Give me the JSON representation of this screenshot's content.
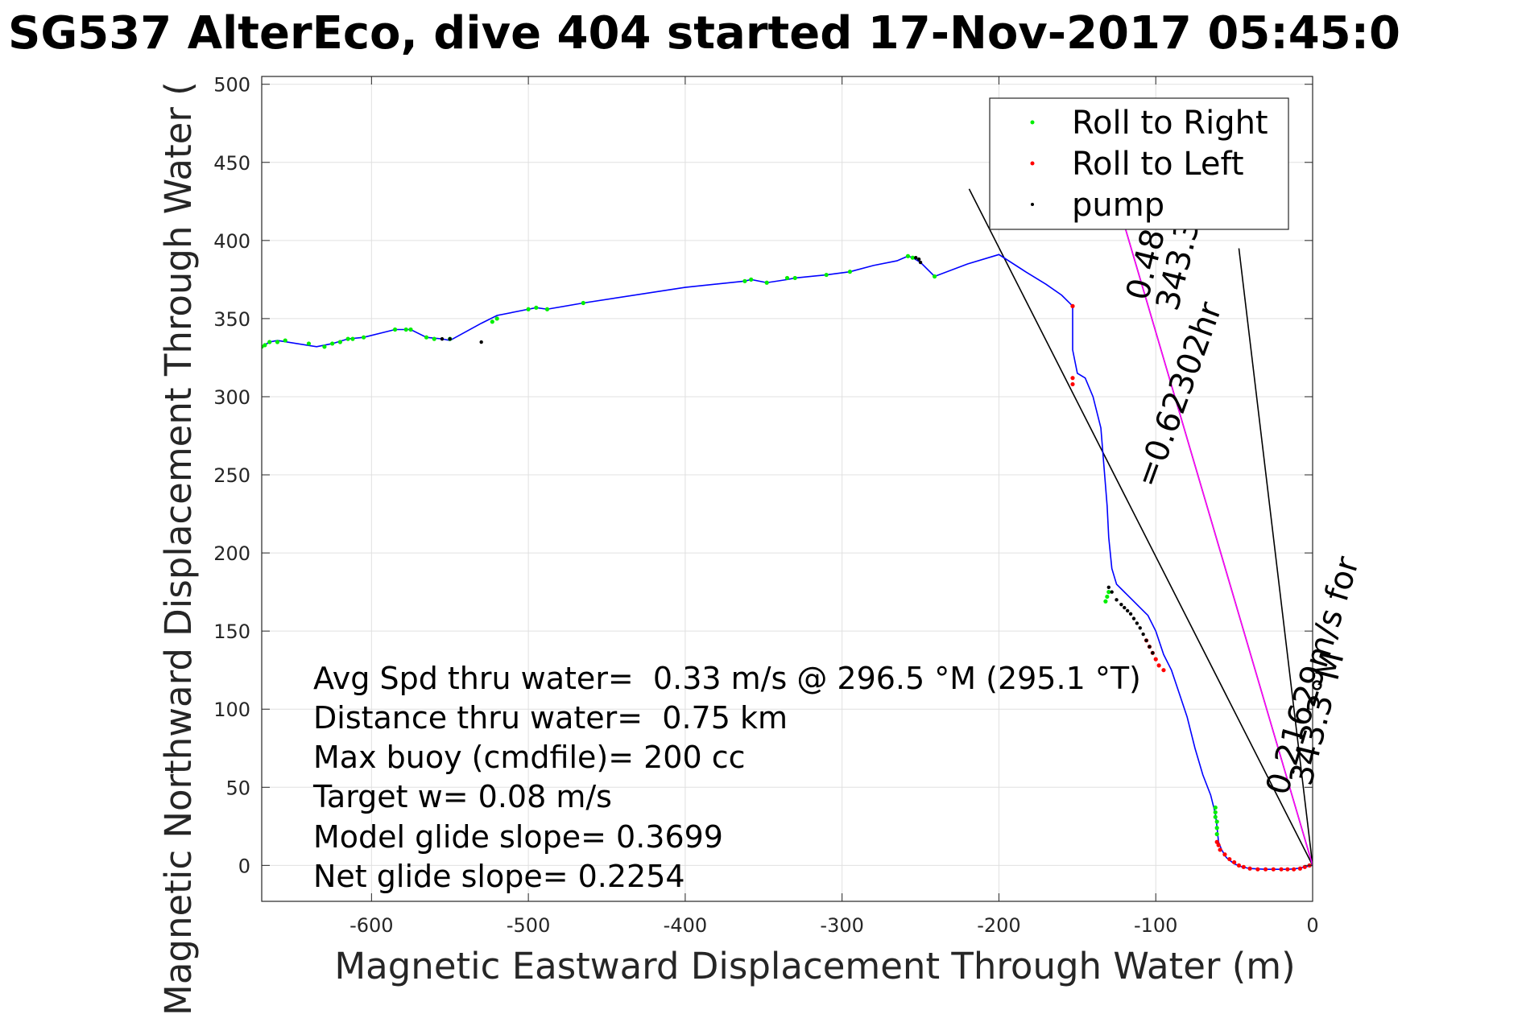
{
  "chart_data": {
    "type": "line",
    "title": "SG537 AlterEco, dive 404 started 17-Nov-2017 05:45:0",
    "xlabel": "Magnetic Eastward Displacement Through Water (m)",
    "ylabel": "Magnetic Northward Displacement Through Water (",
    "xlim": [
      -670,
      0
    ],
    "ylim": [
      -23,
      505
    ],
    "xticks": [
      -600,
      -500,
      -400,
      -300,
      -200,
      -100,
      0
    ],
    "yticks": [
      0,
      50,
      100,
      150,
      200,
      250,
      300,
      350,
      400,
      450,
      500
    ],
    "grid": true,
    "legend_position": "top-right",
    "legend": [
      {
        "name": "Roll to Right",
        "color": "#00ee00"
      },
      {
        "name": "Roll to Left",
        "color": "#ff0000"
      },
      {
        "name": "pump",
        "color": "#000000"
      }
    ],
    "track": {
      "color": "#0000ff",
      "x": [
        0,
        -5,
        -10,
        -15,
        -20,
        -30,
        -40,
        -45,
        -50,
        -55,
        -58,
        -60,
        -61,
        -62,
        -65,
        -70,
        -75,
        -80,
        -85,
        -90,
        -95,
        -100,
        -105,
        -110,
        -115,
        -120,
        -125,
        -128,
        -130,
        -131,
        -133,
        -135,
        -140,
        -145,
        -150,
        -153,
        -153,
        -155,
        -160,
        -170,
        -183,
        -200,
        -220,
        -241,
        -250,
        -255,
        -258,
        -265,
        -280,
        -295,
        -310,
        -330,
        -335,
        -348,
        -358,
        -362,
        -400,
        -465,
        -488,
        -495,
        -500,
        -520,
        -530,
        -550,
        -555,
        -565,
        -575,
        -585,
        -605,
        -615,
        -625,
        -635,
        -660,
        -665,
        -670
      ],
      "y": [
        0,
        -1,
        -2,
        -2.5,
        -2.5,
        -2.5,
        -2,
        -1,
        1,
        5,
        10,
        15,
        25,
        33,
        45,
        58,
        75,
        95,
        110,
        125,
        135,
        150,
        160,
        165,
        170,
        175,
        180,
        190,
        210,
        230,
        255,
        280,
        300,
        312,
        315,
        330,
        358,
        360,
        365,
        372,
        380,
        391,
        385,
        377,
        386,
        389,
        390,
        387,
        384,
        380,
        378,
        376,
        375,
        373,
        375,
        374,
        370,
        360,
        356,
        357,
        356,
        352,
        347,
        336,
        337,
        338,
        343,
        343,
        338,
        337,
        334,
        332,
        336,
        335,
        332
      ]
    },
    "roll_right": {
      "color": "#00ee00",
      "x": [
        -61,
        -61,
        -61,
        -62,
        -62,
        -62,
        -130,
        -131,
        -132,
        -362,
        -358,
        -348,
        -335,
        -330,
        -310,
        -295,
        -258,
        -255,
        -241,
        -465,
        -488,
        -495,
        -500,
        -520,
        -523,
        -550,
        -560,
        -565,
        -575,
        -578,
        -585,
        -605,
        -612,
        -615,
        -620,
        -625,
        -630,
        -640,
        -655,
        -660,
        -665,
        -668,
        -670
      ],
      "y": [
        20,
        24,
        28,
        31,
        34,
        37,
        175,
        172,
        169,
        374,
        375,
        373,
        376,
        376,
        378,
        380,
        390,
        389,
        377,
        360,
        356,
        357,
        356,
        350,
        348,
        337,
        337,
        338,
        343,
        343,
        343,
        338,
        337,
        337,
        335,
        334,
        332,
        334,
        336,
        335,
        335,
        333,
        332
      ]
    },
    "roll_left": {
      "color": "#ff0000",
      "x": [
        -2,
        -5,
        -8,
        -12,
        -16,
        -20,
        -25,
        -30,
        -35,
        -40,
        -44,
        -47,
        -50,
        -53,
        -56,
        -59,
        -60,
        -61,
        -153,
        -153,
        -153,
        -95,
        -98,
        -100,
        -102,
        -104,
        -106
      ],
      "y": [
        0,
        -1,
        -2,
        -2.5,
        -2.5,
        -2.5,
        -2.5,
        -2.5,
        -2.5,
        -2,
        -1,
        0,
        2,
        4,
        7,
        10,
        13,
        15,
        358,
        312,
        308,
        125,
        128,
        132,
        136,
        140,
        144
      ],
      "note": ""
    },
    "pump": {
      "color": "#000000",
      "x": [
        -130,
        -128,
        -125,
        -122,
        -120,
        -118,
        -116,
        -114,
        -112,
        -110,
        -108,
        -106,
        -104,
        -102,
        -250,
        -251,
        -253,
        -550,
        -555,
        -530
      ],
      "y": [
        178,
        175,
        170,
        167,
        165,
        163,
        161,
        158,
        155,
        152,
        148,
        144,
        140,
        136,
        386,
        388,
        389,
        337,
        337,
        335
      ]
    },
    "glide_lines": [
      {
        "name": "",
        "color": "#000000",
        "x": [
          0,
          -219
        ],
        "y": [
          0,
          433
        ]
      },
      {
        "name": "",
        "color": "#000000",
        "x": [
          0,
          -47
        ],
        "y": [
          0,
          395
        ]
      },
      {
        "name": "",
        "color": "#000000",
        "x": [
          0,
          -123
        ],
        "y": [
          0,
          420
        ]
      },
      {
        "name": "",
        "color": "#ff00ff",
        "x": [
          0,
          -123
        ],
        "y": [
          0,
          420
        ]
      }
    ]
  },
  "labels": {
    "slope_upper": "0.4851",
    "slope_upper_heading": "343.3",
    "slope_mid": "=0.62302hr",
    "slope_lower": "0.21629m/s for",
    "slope_lower_heading": "343.3°M"
  },
  "annotations": [
    "Avg Spd thru water=  0.33 m/s @ 296.5 °M (295.1 °T)",
    "Distance thru water=  0.75 km",
    "Max buoy (cmdfile)= 200 cc",
    "Target w= 0.08 m/s",
    "Model glide slope= 0.3699",
    "Net glide slope= 0.2254"
  ]
}
